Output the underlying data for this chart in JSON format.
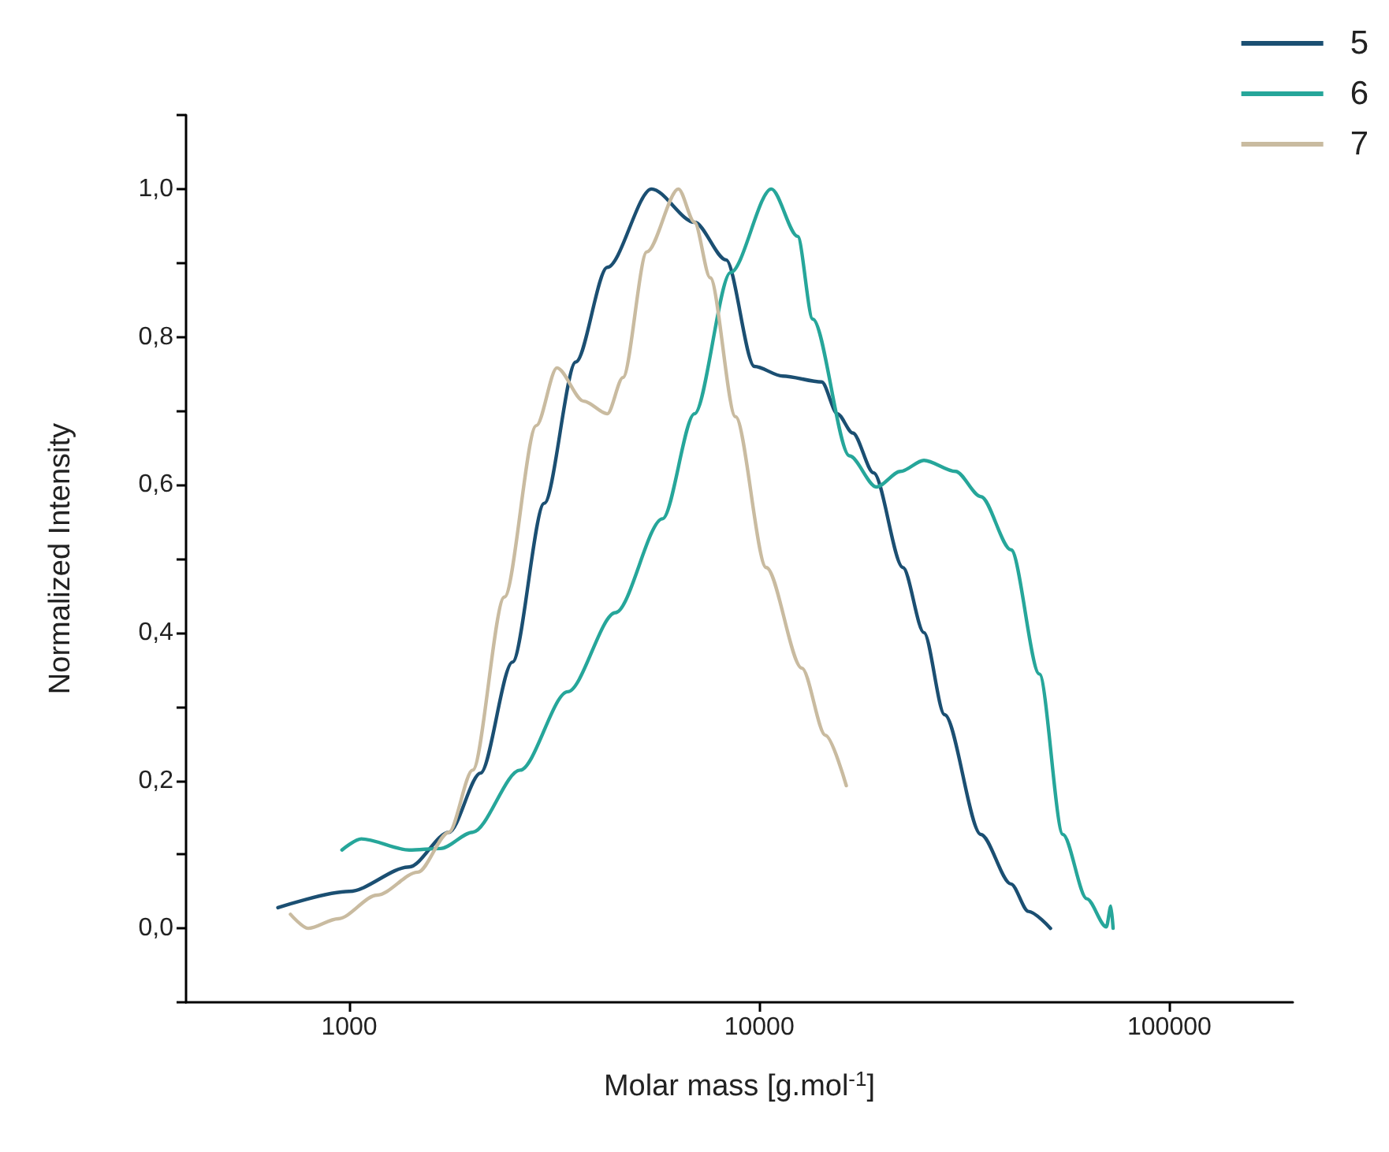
{
  "chart_data": {
    "type": "line",
    "xlabel": "Molar mass [g.mol$^{-1}$]",
    "ylabel": "Normalized Intensity",
    "log": "x",
    "xlim": [
      400,
      200000
    ],
    "xticks": [
      1000,
      10000,
      100000
    ],
    "ylim": [
      -0.1,
      1.1
    ],
    "yticks": [
      {
        "value": -0.1,
        "label": null
      },
      {
        "value": 0,
        "label": "0,0"
      },
      {
        "value": 0.1,
        "label": null
      },
      {
        "value": 0.2,
        "label": "0,2"
      },
      {
        "value": 0.3,
        "label": null
      },
      {
        "value": 0.4,
        "label": "0,4"
      },
      {
        "value": 0.5,
        "label": null
      },
      {
        "value": 0.6,
        "label": "0,6"
      },
      {
        "value": 0.7,
        "label": null
      },
      {
        "value": 0.8,
        "label": "0,8"
      },
      {
        "value": 0.9,
        "label": null
      },
      {
        "value": 1.0,
        "label": "1,0"
      },
      {
        "value": 1.1,
        "label": null
      }
    ],
    "grid": false,
    "legend": "top right",
    "marker": "none",
    "line_style": "solid",
    "series": [
      {
        "name": "5",
        "color": "#1b4f72",
        "x": [
          670,
          1000,
          1400,
          1750,
          2090,
          2500,
          2990,
          3570,
          4260,
          5460,
          6950,
          8300,
          9730,
          11400,
          14200,
          15500,
          16900,
          19000,
          22400,
          25200,
          28300,
          34700,
          41100,
          45300,
          51300
        ],
        "values": [
          0.028,
          0.05,
          0.083,
          0.13,
          0.21,
          0.36,
          0.575,
          0.766,
          0.894,
          1.0,
          0.955,
          0.904,
          0.76,
          0.747,
          0.739,
          0.696,
          0.67,
          0.616,
          0.488,
          0.4,
          0.289,
          0.127,
          0.06,
          0.023,
          0.0
        ]
      },
      {
        "name": "6",
        "color": "#26a69a",
        "x": [
          960,
          1070,
          1400,
          1670,
          2000,
          2610,
          3410,
          4460,
          5810,
          6950,
          8510,
          10700,
          12400,
          13500,
          16600,
          19300,
          22100,
          25200,
          30100,
          34700,
          41100,
          48200,
          55000,
          62900,
          70200,
          72000,
          72900
        ],
        "values": [
          0.106,
          0.121,
          0.106,
          0.108,
          0.13,
          0.214,
          0.32,
          0.427,
          0.554,
          0.696,
          0.887,
          1.0,
          0.936,
          0.824,
          0.639,
          0.597,
          0.618,
          0.633,
          0.618,
          0.584,
          0.512,
          0.344,
          0.127,
          0.04,
          0.002,
          0.03,
          0.0
        ]
      },
      {
        "name": "7",
        "color": "#c9bba0",
        "x": [
          719,
          794,
          940,
          1170,
          1470,
          1750,
          2000,
          2390,
          2860,
          3210,
          3730,
          4260,
          4650,
          5320,
          6350,
          6950,
          7590,
          8750,
          10400,
          12700,
          14500,
          16300
        ],
        "values": [
          0.019,
          0.0,
          0.013,
          0.045,
          0.076,
          0.13,
          0.214,
          0.448,
          0.68,
          0.758,
          0.713,
          0.696,
          0.745,
          0.915,
          1.0,
          0.955,
          0.88,
          0.692,
          0.488,
          0.352,
          0.261,
          0.193
        ]
      }
    ]
  }
}
